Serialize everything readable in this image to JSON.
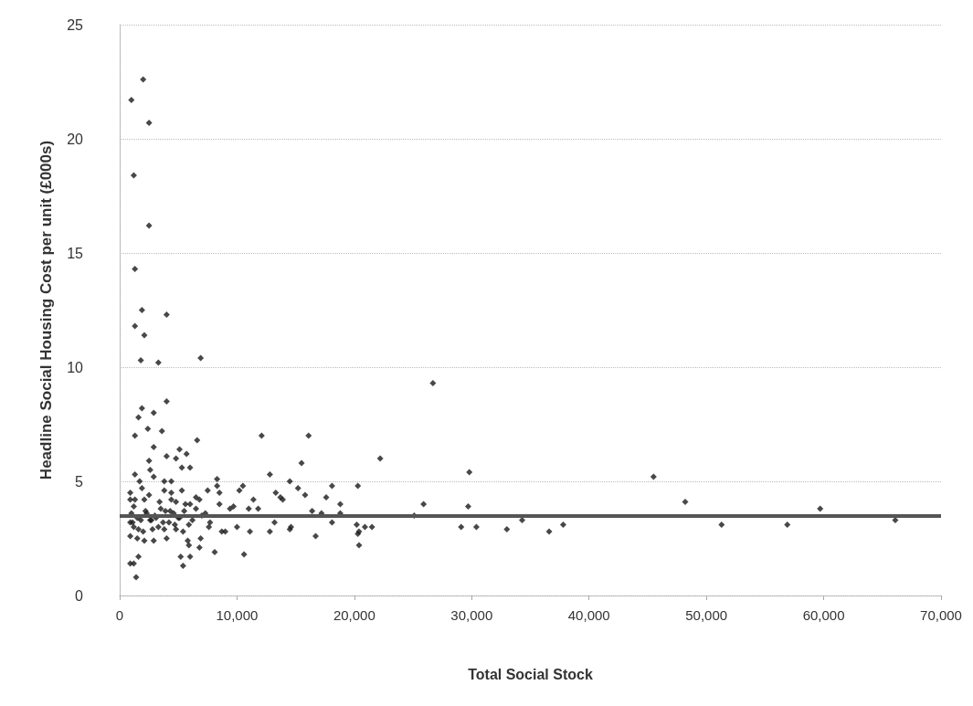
{
  "chart_data": {
    "type": "scatter",
    "xlabel": "Total Social Stock",
    "ylabel": "Headline Social Housing Cost per unit (£000s)",
    "xlim": [
      0,
      70000
    ],
    "xticks": [
      0,
      {
        "value": 10000,
        "label": "10,000"
      },
      {
        "value": 20000,
        "label": "20,000"
      },
      {
        "value": 30000,
        "label": "30,000"
      },
      {
        "value": 40000,
        "label": "40,000"
      },
      {
        "value": 50000,
        "label": "50,000"
      },
      {
        "value": 60000,
        "label": "60,000"
      },
      {
        "value": 70000,
        "label": "70,000"
      }
    ],
    "ylim": [
      0,
      25
    ],
    "yticks": [
      0,
      5,
      10,
      15,
      20,
      25
    ],
    "grid": "y",
    "marker": "diamond",
    "ref_lines": [
      {
        "axis": "y",
        "value": 3.5,
        "color": "#555555"
      }
    ],
    "series": [
      {
        "color": "#1a1a1a",
        "x": [
          2000,
          1000,
          2500,
          1200,
          2500,
          1300,
          1900,
          4000,
          1300,
          2100,
          1800,
          3300,
          6900,
          4000,
          1900,
          2900,
          1600,
          2400,
          3600,
          1300,
          2900,
          6600,
          12100,
          16100,
          4000,
          5100,
          4800,
          5700,
          2500,
          2600,
          2900,
          5300,
          6000,
          15500,
          12800,
          1300,
          1700,
          3800,
          4400,
          8300,
          8300,
          14500,
          18100,
          20300,
          900,
          1900,
          3800,
          4400,
          5300,
          6500,
          6800,
          7500,
          8500,
          10200,
          10500,
          13300,
          13700,
          13900,
          15200,
          15800,
          17600,
          11400,
          18800,
          900,
          1300,
          2100,
          2500,
          3400,
          4400,
          4800,
          5600,
          6000,
          8500,
          9400,
          9700,
          11000,
          11800,
          16400,
          17200,
          18800,
          900,
          1200,
          1600,
          2000,
          2800,
          3300,
          3800,
          4800,
          5400,
          900,
          1500,
          2100,
          2900,
          4000,
          5800,
          5900,
          6900,
          6800,
          7600,
          7700,
          8700,
          9000,
          10000,
          11100,
          12800,
          13200,
          14500,
          14600,
          16700,
          18100,
          20200,
          20400,
          20400,
          5200,
          6000,
          5400,
          8100,
          10600,
          1600,
          1200,
          900,
          1400,
          26700,
          22200,
          29800,
          45500,
          25900,
          29700,
          48200,
          59700,
          25100,
          20900,
          21500,
          20300,
          29100,
          30400,
          33000,
          34300,
          36600,
          37800,
          51300,
          56900,
          66100,
          1000,
          1500,
          2200,
          2700,
          3000,
          3500,
          4200,
          4600,
          5000,
          5500,
          6200,
          7000,
          1200,
          1800,
          2300,
          3100,
          3700,
          4300,
          5100,
          5900,
          6500,
          7300,
          1100,
          2600,
          3900,
          4700
        ],
        "values": [
          22.6,
          21.7,
          20.7,
          18.4,
          16.2,
          14.3,
          12.5,
          12.3,
          11.8,
          11.4,
          10.3,
          10.2,
          10.4,
          8.5,
          8.2,
          8.0,
          7.8,
          7.3,
          7.2,
          7.0,
          6.5,
          6.8,
          7.0,
          7.0,
          6.1,
          6.4,
          6.0,
          6.2,
          5.9,
          5.5,
          5.2,
          5.6,
          5.6,
          5.8,
          5.3,
          5.3,
          5.0,
          5.0,
          5.0,
          5.1,
          4.8,
          5.0,
          4.8,
          4.8,
          4.5,
          4.7,
          4.6,
          4.5,
          4.6,
          4.3,
          4.2,
          4.6,
          4.5,
          4.6,
          4.8,
          4.5,
          4.3,
          4.2,
          4.7,
          4.4,
          4.3,
          4.2,
          4.0,
          4.2,
          4.2,
          4.2,
          4.4,
          4.1,
          4.2,
          4.1,
          4.0,
          4.0,
          4.0,
          3.8,
          3.9,
          3.8,
          3.8,
          3.7,
          3.6,
          3.6,
          3.2,
          3.0,
          2.9,
          2.8,
          2.9,
          3.0,
          2.9,
          2.9,
          2.8,
          2.6,
          2.5,
          2.4,
          2.4,
          2.5,
          2.4,
          2.2,
          2.5,
          2.1,
          3.0,
          3.2,
          2.8,
          2.8,
          3.0,
          2.8,
          2.8,
          3.2,
          2.9,
          3.0,
          2.6,
          3.2,
          3.1,
          2.8,
          2.2,
          1.7,
          1.7,
          1.3,
          1.9,
          1.8,
          1.7,
          1.4,
          1.4,
          0.8,
          9.3,
          6.0,
          5.4,
          5.2,
          4.0,
          3.9,
          4.1,
          3.8,
          3.5,
          3.0,
          3.0,
          2.7,
          3.0,
          3.0,
          2.9,
          3.3,
          2.8,
          3.1,
          3.1,
          3.1,
          3.3,
          3.6,
          3.4,
          3.7,
          3.3,
          3.5,
          3.8,
          3.2,
          3.6,
          3.4,
          3.7,
          3.3,
          3.5,
          3.9,
          3.3,
          3.6,
          3.4,
          3.2,
          3.7,
          3.4,
          3.1,
          3.8,
          3.6,
          3.2,
          3.3,
          3.7,
          3.1
        ]
      }
    ]
  }
}
